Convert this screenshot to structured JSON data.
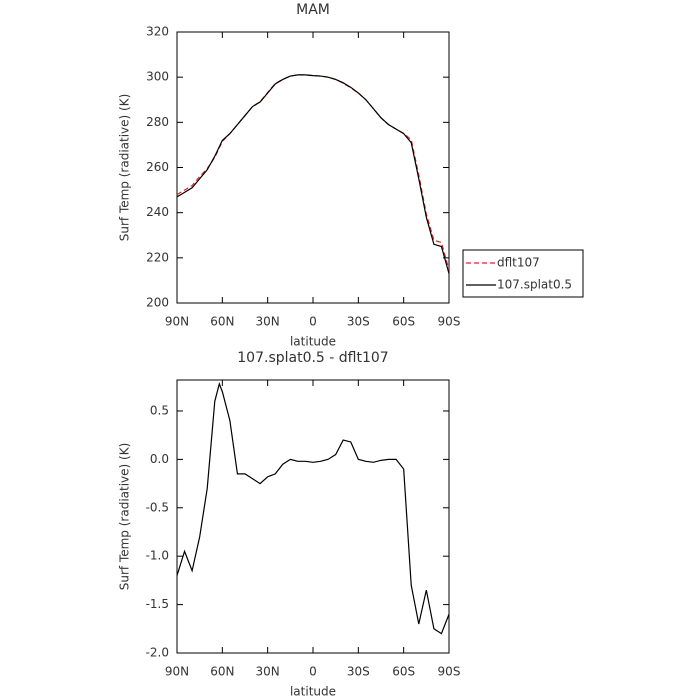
{
  "chart_data": [
    {
      "type": "line",
      "title": "MAM",
      "x_label": "latitude",
      "y_label": "Surf Temp (radiative) (K)",
      "x": [
        90,
        85,
        80,
        75,
        70,
        65,
        60,
        55,
        50,
        45,
        40,
        35,
        30,
        25,
        20,
        15,
        10,
        5,
        0,
        -5,
        -10,
        -15,
        -20,
        -25,
        -30,
        -35,
        -40,
        -45,
        -50,
        -55,
        -60,
        -65,
        -70,
        -75,
        -80,
        -85,
        -90
      ],
      "series": [
        {
          "name": "dflt107",
          "color": "#d62728",
          "dash": true,
          "values": [
            248,
            250,
            252,
            256,
            259.5,
            264.5,
            271.5,
            275,
            279,
            283,
            287,
            289.2,
            293.2,
            297.2,
            299,
            300.5,
            301,
            301,
            300.7,
            300.5,
            300,
            299,
            297.3,
            295.3,
            293,
            290,
            286,
            282,
            279,
            277,
            275.1,
            272.3,
            256.7,
            239.4,
            227.8,
            226.8,
            214.6
          ]
        },
        {
          "name": "107.splat0.5",
          "color": "#000000",
          "dash": false,
          "values": [
            247,
            249,
            251,
            255,
            259,
            265,
            272,
            275,
            279,
            283,
            287,
            289,
            293,
            297,
            299,
            300.5,
            301,
            301,
            300.7,
            300.5,
            300,
            299,
            297.5,
            295.5,
            293,
            290,
            286,
            282,
            279,
            277,
            275,
            271,
            255,
            238,
            226,
            225,
            213
          ]
        }
      ],
      "xlim": [
        90,
        -90
      ],
      "xticks": [
        {
          "value": 90,
          "label": "90N"
        },
        {
          "value": 60,
          "label": "60N"
        },
        {
          "value": 30,
          "label": "30N"
        },
        0,
        {
          "value": -30,
          "label": "30S"
        },
        {
          "value": -60,
          "label": "60S"
        },
        {
          "value": -90,
          "label": "90S"
        }
      ],
      "ylim": [
        200,
        320
      ],
      "yticks": [
        200,
        220,
        240,
        260,
        280,
        300,
        320
      ],
      "legend": "right"
    },
    {
      "type": "line",
      "title": "107.splat0.5 - dflt107",
      "x_label": "latitude",
      "y_label": "Surf Temp (radiative) (K)",
      "x": [
        90,
        85,
        80,
        75,
        70,
        65,
        62,
        60,
        55,
        50,
        45,
        40,
        35,
        30,
        25,
        20,
        15,
        10,
        5,
        0,
        -5,
        -10,
        -15,
        -20,
        -25,
        -30,
        -35,
        -40,
        -45,
        -50,
        -55,
        -60,
        -65,
        -70,
        -75,
        -80,
        -85,
        -90
      ],
      "series": [
        {
          "name": "107.splat0.5 - dflt107",
          "color": "#000000",
          "dash": false,
          "values": [
            -1.2,
            -0.95,
            -1.15,
            -0.8,
            -0.3,
            0.6,
            0.78,
            0.7,
            0.4,
            -0.15,
            -0.15,
            -0.2,
            -0.25,
            -0.18,
            -0.15,
            -0.05,
            0.0,
            -0.02,
            -0.02,
            -0.03,
            -0.02,
            0.0,
            0.05,
            0.2,
            0.18,
            0.0,
            -0.02,
            -0.03,
            -0.01,
            0.0,
            0.0,
            -0.1,
            -1.3,
            -1.7,
            -1.35,
            -1.75,
            -1.8,
            -1.6
          ]
        }
      ],
      "xlim": [
        90,
        -90
      ],
      "xticks": [
        {
          "value": 90,
          "label": "90N"
        },
        {
          "value": 60,
          "label": "60N"
        },
        {
          "value": 30,
          "label": "30N"
        },
        0,
        {
          "value": -30,
          "label": "30S"
        },
        {
          "value": -60,
          "label": "60S"
        },
        {
          "value": -90,
          "label": "90S"
        }
      ],
      "ylim": [
        -2.0,
        0.82
      ],
      "yticks": [
        {
          "value": -2,
          "label": "-2.0"
        },
        -1.5,
        {
          "value": -1,
          "label": "-1.0"
        },
        -0.5,
        {
          "value": 0,
          "label": "0.0"
        },
        0.5
      ]
    }
  ]
}
